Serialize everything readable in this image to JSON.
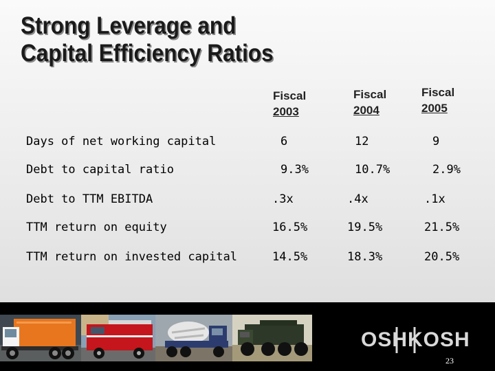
{
  "title": {
    "line1": "Strong Leverage and",
    "line2": "Capital Efficiency Ratios"
  },
  "columns": [
    {
      "label": "Fiscal",
      "year": "2003"
    },
    {
      "label": "Fiscal",
      "year": "2004"
    },
    {
      "label": "Fiscal",
      "year": "2005"
    }
  ],
  "rows": [
    {
      "label": "Days of net working capital",
      "values": [
        "6",
        "12",
        "9"
      ]
    },
    {
      "label": "Debt to capital ratio",
      "values": [
        "9.3%",
        "10.7%",
        "2.9%"
      ]
    },
    {
      "label": "Debt to TTM EBITDA",
      "values": [
        ".3x",
        ".4x",
        ".1x"
      ]
    },
    {
      "label": "TTM return on equity",
      "values": [
        "16.5%",
        "19.5%",
        "21.5%"
      ]
    },
    {
      "label": "TTM return on invested capital",
      "values": [
        "14.5%",
        "18.3%",
        "20.5%"
      ]
    }
  ],
  "footer": {
    "logo_text": "OSHKOSH",
    "page_number": "23"
  },
  "colors": {
    "background": "#efefef",
    "text": "#000000",
    "footer_band": "#000000",
    "logo": "#d9d9d9"
  },
  "icons": [
    "garbage-truck-photo",
    "fire-truck-photo",
    "cement-mixer-photo",
    "military-truck-photo",
    "oshkosh-logo"
  ]
}
